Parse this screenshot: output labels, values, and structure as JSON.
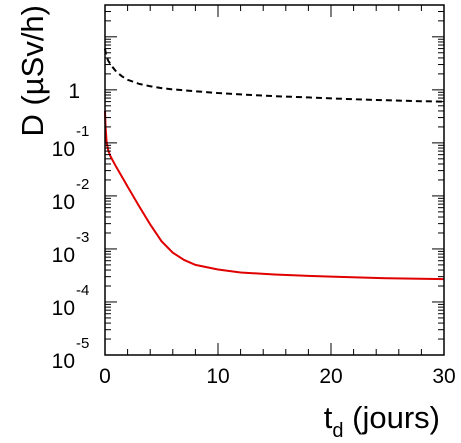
{
  "chart_data": {
    "type": "line",
    "xlabel": {
      "base": "t",
      "subscript": "d",
      "rest": " (jours)"
    },
    "ylabel": "D (µSv/h)",
    "xlim": [
      0,
      30
    ],
    "ylim_log10": [
      -5,
      1.6
    ],
    "yscale": "log",
    "grid": false,
    "x_ticks": [
      {
        "value": 0,
        "label": "0"
      },
      {
        "value": 10,
        "label": "10"
      },
      {
        "value": 20,
        "label": "20"
      },
      {
        "value": 30,
        "label": "30"
      }
    ],
    "y_ticks": [
      {
        "exp": 0,
        "base": "1",
        "sup": ""
      },
      {
        "exp": -1,
        "base": "10",
        "sup": "-1"
      },
      {
        "exp": -2,
        "base": "10",
        "sup": "-2"
      },
      {
        "exp": -3,
        "base": "10",
        "sup": "-3"
      },
      {
        "exp": -4,
        "base": "10",
        "sup": "-4"
      },
      {
        "exp": -5,
        "base": "10",
        "sup": "-5"
      }
    ],
    "series": [
      {
        "style": "dashed",
        "color": "#000000",
        "x": [
          0,
          0.1,
          0.3,
          0.6,
          1,
          1.5,
          2,
          3,
          4,
          5,
          6,
          8,
          10,
          12,
          15,
          18,
          20,
          22,
          25,
          28,
          30
        ],
        "y": [
          6,
          4.4,
          3.5,
          2.8,
          2.2,
          1.8,
          1.55,
          1.3,
          1.17,
          1.08,
          1.02,
          0.94,
          0.87,
          0.82,
          0.76,
          0.72,
          0.69,
          0.665,
          0.635,
          0.61,
          0.6
        ]
      },
      {
        "style": "solid",
        "color": "#e00000",
        "x": [
          0,
          0.05,
          0.15,
          0.3,
          0.5,
          1,
          1.5,
          2,
          3,
          4,
          5,
          6,
          7,
          8,
          10,
          12,
          15,
          18,
          20,
          25,
          30
        ],
        "y": [
          0.4,
          0.2,
          0.1,
          0.07,
          0.055,
          0.035,
          0.023,
          0.015,
          0.0065,
          0.0029,
          0.0014,
          0.00085,
          0.00062,
          0.0005,
          0.00041,
          0.00036,
          0.00033,
          0.00031,
          0.0003,
          0.00028,
          0.00027
        ]
      }
    ]
  }
}
